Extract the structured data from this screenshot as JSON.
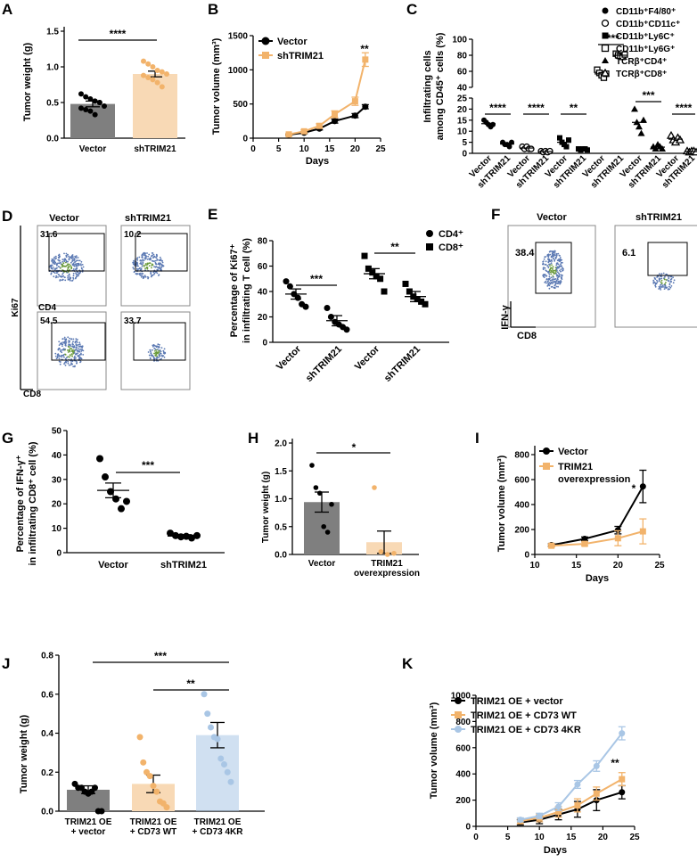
{
  "panel_labels": [
    "A",
    "B",
    "C",
    "D",
    "E",
    "F",
    "G",
    "H",
    "I",
    "J",
    "K"
  ],
  "colors": {
    "black": "#000000",
    "vector_bar": "#7f7f7f",
    "shtrim_bar": "#f8d9b5",
    "orange": "#f2b36b",
    "light_blue": "#a9c6e5",
    "flow_dots": "#5b79b3"
  },
  "chart_data": [
    {
      "id": "A",
      "type": "bar",
      "categories": [
        "Vector",
        "shTRIM21"
      ],
      "values": [
        0.48,
        0.9
      ],
      "errors": [
        0.04,
        0.04
      ],
      "points": [
        [
          0.62,
          0.58,
          0.55,
          0.52,
          0.5,
          0.45,
          0.42,
          0.4,
          0.38,
          0.33,
          0.5
        ],
        [
          1.08,
          1.04,
          1.0,
          0.95,
          0.93,
          0.9,
          0.88,
          0.85,
          0.82,
          0.78,
          0.72
        ]
      ],
      "ylabel": "Tumor weight (g)",
      "ylim": [
        0,
        1.5
      ],
      "yticks": [
        "0.0",
        "0.5",
        "1.0",
        "1.5"
      ],
      "significance": "****"
    },
    {
      "id": "B",
      "type": "line",
      "xlabel": "Days",
      "ylabel": "Tumor volume (mm³)",
      "xlim": [
        0,
        25
      ],
      "ylim": [
        0,
        1500
      ],
      "xticks": [
        "0",
        "5",
        "10",
        "15",
        "20",
        "25"
      ],
      "yticks": [
        "0",
        "500",
        "1000",
        "1500"
      ],
      "series": [
        {
          "name": "Vector",
          "x": [
            7,
            10,
            13,
            16,
            20,
            22
          ],
          "y": [
            50,
            80,
            140,
            250,
            330,
            460
          ],
          "err": [
            10,
            15,
            20,
            30,
            30,
            30
          ]
        },
        {
          "name": "shTRIM21",
          "x": [
            7,
            10,
            13,
            16,
            20,
            22
          ],
          "y": [
            55,
            100,
            180,
            350,
            540,
            1150
          ],
          "err": [
            10,
            20,
            30,
            50,
            60,
            100
          ]
        }
      ],
      "annotation": "**"
    },
    {
      "id": "C",
      "type": "scatter",
      "ylabel_line1": "Infiltrating cells",
      "ylabel_line2": "among CD45⁺ cells (%)",
      "yticks_lower": [
        "0",
        "5",
        "10",
        "15",
        "20",
        "25"
      ],
      "yticks_upper": [
        "40",
        "60",
        "80",
        "100"
      ],
      "xticklabels": [
        "Vector",
        "shTRIM21",
        "Vector",
        "shTRIM21",
        "Vector",
        "shTRIM21",
        "Vector",
        "shTRIM21",
        "Vector",
        "shTRIM21",
        "Vector",
        "shTRIM21"
      ],
      "legend": [
        "CD11b⁺F4/80⁺",
        "CD11b⁺CD11c⁺",
        "CD11b⁺Ly6C⁺",
        "CD11b⁺Ly6G⁺",
        "TCRβ⁺CD4⁺",
        "TCRβ⁺CD8⁺"
      ],
      "groups": [
        {
          "marker": "circle",
          "values": [
            [
              15,
              14,
              13,
              12,
              13
            ],
            [
              5,
              4,
              4,
              3,
              5
            ]
          ],
          "sig": "****"
        },
        {
          "marker": "circle-open",
          "values": [
            [
              3,
              2,
              3,
              2,
              2
            ],
            [
              1,
              0.5,
              1,
              0.5,
              1
            ]
          ],
          "sig": "****"
        },
        {
          "marker": "square",
          "values": [
            [
              7,
              5,
              4,
              3,
              6
            ],
            [
              2,
              1.5,
              2,
              2,
              1.5
            ]
          ],
          "sig": "**"
        },
        {
          "marker": "square-open",
          "values": [
            [
              62,
              58,
              55,
              52,
              57
            ],
            [
              82,
              80,
              79,
              78,
              81
            ]
          ],
          "sig": "****"
        },
        {
          "marker": "triangle",
          "values": [
            [
              20,
              14,
              12,
              9,
              15
            ],
            [
              3,
              2,
              4,
              3,
              2
            ]
          ],
          "sig": "***"
        },
        {
          "marker": "triangle-open",
          "values": [
            [
              8,
              6,
              5,
              7,
              6
            ],
            [
              1,
              0.5,
              1,
              1,
              0.5
            ]
          ],
          "sig": "****"
        }
      ]
    },
    {
      "id": "D",
      "type": "flow",
      "columns": [
        "Vector",
        "shTRIM21"
      ],
      "row_xlabels": [
        "CD4",
        "CD8"
      ],
      "ylabel": "Ki67",
      "gate_values": [
        [
          "31.6",
          "10.2"
        ],
        [
          "54.5",
          "33.7"
        ]
      ]
    },
    {
      "id": "E",
      "type": "scatter",
      "ylabel_line1": "Percentage of Ki67⁺",
      "ylabel_line2": "in infiltrating T cell (%)",
      "ylim": [
        0,
        80
      ],
      "yticks": [
        "0",
        "20",
        "40",
        "60",
        "80"
      ],
      "categories": [
        "Vector",
        "shTRIM21",
        "Vector",
        "shTRIM21"
      ],
      "legend": [
        "CD4⁺",
        "CD8⁺"
      ],
      "groups": [
        {
          "name": "CD4⁺",
          "marker": "circle",
          "means": [
            38,
            17
          ],
          "points": [
            [
              48,
              44,
              38,
              35,
              30,
              28
            ],
            [
              27,
              20,
              16,
              14,
              12,
              10
            ]
          ],
          "sig": "***"
        },
        {
          "name": "CD8⁺",
          "marker": "square",
          "means": [
            54,
            36
          ],
          "points": [
            [
              68,
              58,
              55,
              52,
              50,
              40
            ],
            [
              46,
              40,
              36,
              34,
              32,
              30
            ]
          ],
          "sig": "**"
        }
      ]
    },
    {
      "id": "F",
      "type": "flow",
      "columns": [
        "Vector",
        "shTRIM21"
      ],
      "xlabel": "CD8",
      "ylabel": "IFN-γ",
      "gate_values": [
        "38.4",
        "6.1"
      ]
    },
    {
      "id": "G",
      "type": "scatter",
      "ylabel_line1": "Percentage of IFN-γ⁺",
      "ylabel_line2": "in infiltrating CD8⁺ cell (%)",
      "ylim": [
        0,
        50
      ],
      "yticks": [
        "0",
        "10",
        "20",
        "30",
        "40",
        "50"
      ],
      "categories": [
        "Vector",
        "shTRIM21"
      ],
      "means": [
        25.5,
        6.8
      ],
      "errors": [
        3,
        0.6
      ],
      "points": [
        [
          38.5,
          31,
          25,
          22,
          18,
          21
        ],
        [
          8,
          7,
          6.5,
          6.7,
          6,
          7
        ]
      ],
      "significance": "***"
    },
    {
      "id": "H",
      "type": "bar",
      "categories": [
        "Vector",
        "TRIM21\noverexpression"
      ],
      "values": [
        0.94,
        0.22
      ],
      "errors": [
        0.18,
        0.2
      ],
      "points": [
        [
          1.6,
          1.2,
          1.1,
          0.5,
          0.4,
          0.9
        ],
        [
          1.2,
          0.05,
          0.0,
          0.02
        ]
      ],
      "ylabel": "Tumor weight (g)",
      "ylim": [
        0,
        2.0
      ],
      "yticks": [
        "0.0",
        "0.5",
        "1.0",
        "1.5",
        "2.0"
      ],
      "significance": "*"
    },
    {
      "id": "I",
      "type": "line",
      "xlabel": "Days",
      "ylabel": "Tumor volume (mm³)",
      "xlim": [
        10,
        25
      ],
      "ylim": [
        0,
        800
      ],
      "xticks": [
        "10",
        "15",
        "20",
        "25"
      ],
      "yticks": [
        "0",
        "200",
        "400",
        "600",
        "800"
      ],
      "series": [
        {
          "name": "Vector",
          "x": [
            12,
            16,
            20,
            23
          ],
          "y": [
            75,
            125,
            195,
            545
          ],
          "err": [
            10,
            15,
            30,
            130
          ]
        },
        {
          "name": "TRIM21 overexpression",
          "x": [
            12,
            16,
            20,
            23
          ],
          "y": [
            70,
            85,
            130,
            185
          ],
          "err": [
            10,
            15,
            60,
            100
          ]
        }
      ],
      "legend": [
        "Vector",
        "TRIM21",
        "overexpression"
      ],
      "annotation": "*"
    },
    {
      "id": "J",
      "type": "bar",
      "categories": [
        "TRIM21 OE\n+ vector",
        "TRIM21 OE\n+ CD73 WT",
        "TRIM21 OE\n+ CD73 4KR"
      ],
      "values": [
        0.11,
        0.14,
        0.39
      ],
      "errors": [
        0.02,
        0.045,
        0.065
      ],
      "points": [
        [
          0.14,
          0.12,
          0.12,
          0.1,
          0.09,
          0.1,
          0.12,
          0.0,
          0.0
        ],
        [
          0.38,
          0.25,
          0.2,
          0.18,
          0.13,
          0.1,
          0.05,
          0.04,
          0.02
        ],
        [
          0.6,
          0.5,
          0.43,
          0.38,
          0.37,
          0.27,
          0.24,
          0.2,
          0.15
        ]
      ],
      "ylabel": "Tumor weight (g)",
      "ylim": [
        0,
        0.8
      ],
      "yticks": [
        "0.0",
        "0.2",
        "0.4",
        "0.6",
        "0.8"
      ],
      "comparisons": [
        {
          "from": 0,
          "to": 2,
          "label": "***"
        },
        {
          "from": 1,
          "to": 2,
          "label": "**"
        }
      ]
    },
    {
      "id": "K",
      "type": "line",
      "xlabel": "Days",
      "ylabel": "Tumor volume (mm³)",
      "xlim": [
        0,
        25
      ],
      "ylim": [
        0,
        1000
      ],
      "xticks": [
        "0",
        "5",
        "10",
        "15",
        "20",
        "25"
      ],
      "yticks": [
        "0",
        "200",
        "400",
        "600",
        "800",
        "1000"
      ],
      "series": [
        {
          "name": "TRIM21 OE + vector",
          "x": [
            7,
            10,
            13,
            16,
            19,
            23
          ],
          "y": [
            30,
            50,
            90,
            130,
            200,
            260
          ],
          "err": [
            20,
            30,
            40,
            60,
            80,
            50
          ]
        },
        {
          "name": "TRIM21 OE + CD73 WT",
          "x": [
            7,
            10,
            13,
            16,
            19,
            23
          ],
          "y": [
            40,
            65,
            110,
            160,
            250,
            360
          ],
          "err": [
            20,
            30,
            40,
            50,
            50,
            50
          ]
        },
        {
          "name": "TRIM21 OE + CD73 4KR",
          "x": [
            7,
            10,
            13,
            16,
            19,
            23
          ],
          "y": [
            50,
            80,
            150,
            320,
            460,
            710
          ],
          "err": [
            15,
            20,
            30,
            30,
            40,
            50
          ]
        }
      ],
      "annotation": "**"
    }
  ]
}
